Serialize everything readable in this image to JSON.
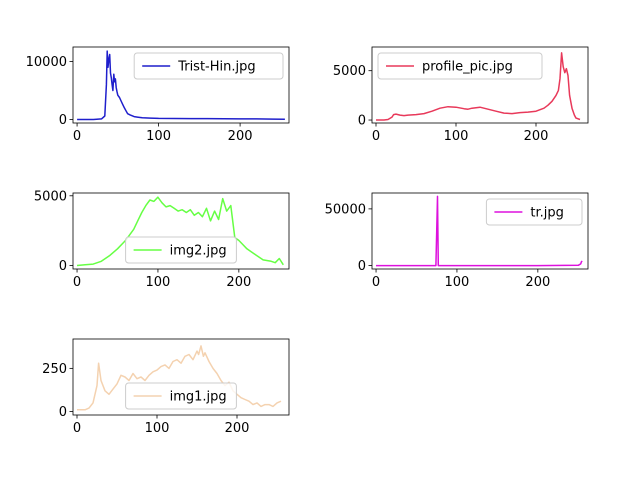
{
  "chart_data": [
    {
      "type": "line",
      "series": [
        {
          "name": "Trist-Hin.jpg",
          "color": "#1f1fcc"
        }
      ],
      "xlim": [
        -5,
        260
      ],
      "ylim": [
        -600,
        12500
      ],
      "xticks": [
        0,
        100,
        200
      ],
      "yticks": [
        0,
        10000
      ],
      "xticklabels": [
        "0",
        "100",
        "200"
      ],
      "yticklabels": [
        "0",
        "10000"
      ],
      "legend": "upper-right",
      "x": [
        0,
        10,
        20,
        30,
        34,
        36,
        37,
        38,
        39,
        40,
        41,
        42,
        43,
        44,
        45,
        46,
        47,
        48,
        49,
        50,
        52,
        54,
        56,
        58,
        60,
        62,
        65,
        70,
        75,
        80,
        90,
        100,
        120,
        140,
        160,
        180,
        200,
        220,
        240,
        255
      ],
      "y": [
        0,
        0,
        0,
        100,
        600,
        6000,
        11800,
        9000,
        10500,
        11200,
        8000,
        7200,
        6000,
        5000,
        7800,
        6500,
        7000,
        5500,
        4800,
        4200,
        3800,
        3200,
        2600,
        2000,
        1500,
        1000,
        800,
        500,
        400,
        300,
        250,
        200,
        180,
        150,
        150,
        120,
        100,
        100,
        80,
        50
      ]
    },
    {
      "type": "line",
      "series": [
        {
          "name": "profile_pic.jpg",
          "color": "#e8395a"
        }
      ],
      "xlim": [
        -5,
        265
      ],
      "ylim": [
        -300,
        7400
      ],
      "xticks": [
        0,
        100,
        200
      ],
      "yticks": [
        0,
        5000
      ],
      "xticklabels": [
        "0",
        "100",
        "200"
      ],
      "yticklabels": [
        "0",
        "5000"
      ],
      "legend": "upper-left",
      "x": [
        0,
        10,
        15,
        20,
        22,
        25,
        30,
        35,
        40,
        50,
        60,
        70,
        80,
        90,
        100,
        110,
        115,
        120,
        130,
        140,
        150,
        160,
        170,
        180,
        190,
        200,
        210,
        215,
        220,
        225,
        228,
        230,
        232,
        234,
        236,
        238,
        240,
        242,
        245,
        248,
        250,
        255
      ],
      "y": [
        0,
        0,
        50,
        300,
        550,
        600,
        500,
        450,
        500,
        550,
        650,
        900,
        1200,
        1350,
        1300,
        1150,
        1100,
        1200,
        1300,
        1100,
        900,
        700,
        650,
        750,
        800,
        900,
        1200,
        1500,
        1900,
        2500,
        3000,
        4200,
        6800,
        5400,
        4800,
        5200,
        4500,
        2500,
        1200,
        500,
        200,
        50
      ]
    },
    {
      "type": "line",
      "series": [
        {
          "name": "img2.jpg",
          "color": "#66ff44"
        }
      ],
      "xlim": [
        -5,
        262
      ],
      "ylim": [
        -250,
        5200
      ],
      "xticks": [
        0,
        100,
        200
      ],
      "yticks": [
        0,
        5000
      ],
      "xticklabels": [
        "0",
        "100",
        "200"
      ],
      "yticklabels": [
        "0",
        "5000"
      ],
      "legend": "lower-center",
      "x": [
        0,
        10,
        20,
        30,
        40,
        50,
        60,
        70,
        75,
        80,
        85,
        90,
        95,
        100,
        105,
        110,
        115,
        120,
        125,
        130,
        135,
        140,
        145,
        150,
        155,
        160,
        165,
        170,
        175,
        180,
        185,
        190,
        195,
        200,
        205,
        210,
        215,
        220,
        230,
        240,
        245,
        250,
        255
      ],
      "y": [
        0,
        50,
        100,
        300,
        700,
        1200,
        1800,
        2600,
        3200,
        3800,
        4300,
        4700,
        4600,
        4900,
        4500,
        4200,
        4300,
        4100,
        3900,
        4000,
        3800,
        4000,
        3600,
        3800,
        3500,
        4100,
        3200,
        3900,
        3300,
        4800,
        3900,
        4300,
        2000,
        1800,
        1500,
        1200,
        1000,
        800,
        400,
        300,
        200,
        500,
        50
      ]
    },
    {
      "type": "line",
      "series": [
        {
          "name": "tr.jpg",
          "color": "#dd11dd"
        }
      ],
      "xlim": [
        -5,
        262
      ],
      "ylim": [
        -3000,
        64000
      ],
      "xticks": [
        0,
        100,
        200
      ],
      "yticks": [
        0,
        50000
      ],
      "xticklabels": [
        "0",
        "100",
        "200"
      ],
      "yticklabels": [
        "0",
        "50000"
      ],
      "legend": "upper-right",
      "x": [
        0,
        50,
        74,
        75,
        76,
        77,
        100,
        150,
        200,
        250,
        253,
        254,
        255
      ],
      "y": [
        0,
        0,
        0,
        30000,
        61000,
        0,
        0,
        0,
        0,
        300,
        1500,
        3500,
        4000
      ]
    },
    {
      "type": "line",
      "series": [
        {
          "name": "img1.jpg",
          "color": "#f4d2b0"
        }
      ],
      "xlim": [
        -5,
        265
      ],
      "ylim": [
        -20,
        420
      ],
      "xticks": [
        0,
        100,
        200
      ],
      "yticks": [
        0,
        250
      ],
      "xticklabels": [
        "0",
        "100",
        "200"
      ],
      "yticklabels": [
        "0",
        "250"
      ],
      "legend": "lower-center",
      "x": [
        0,
        10,
        15,
        20,
        25,
        27,
        30,
        35,
        40,
        45,
        50,
        55,
        60,
        65,
        70,
        75,
        80,
        85,
        90,
        95,
        100,
        105,
        110,
        115,
        120,
        125,
        130,
        135,
        140,
        145,
        150,
        152,
        155,
        158,
        160,
        165,
        170,
        175,
        180,
        185,
        190,
        195,
        200,
        205,
        210,
        215,
        220,
        225,
        230,
        235,
        240,
        245,
        250,
        255
      ],
      "y": [
        10,
        10,
        20,
        50,
        150,
        280,
        180,
        120,
        100,
        130,
        160,
        210,
        200,
        180,
        220,
        190,
        200,
        180,
        210,
        230,
        240,
        260,
        270,
        250,
        290,
        300,
        280,
        320,
        330,
        300,
        350,
        330,
        380,
        320,
        340,
        290,
        250,
        220,
        180,
        150,
        170,
        120,
        100,
        80,
        70,
        60,
        40,
        50,
        30,
        40,
        40,
        30,
        50,
        60
      ]
    }
  ]
}
